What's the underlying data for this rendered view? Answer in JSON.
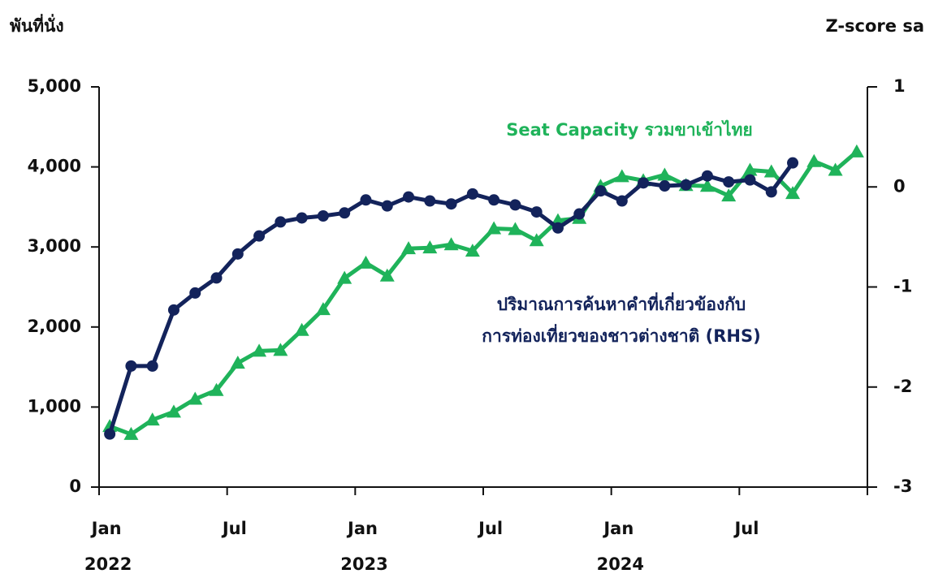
{
  "chart_data": {
    "type": "line",
    "y_axis_label": "พันที่นั่ง",
    "y2_axis_label": "Z-score sa",
    "annotations": [
      "Seat Capacity รวมขาเข้าไทย",
      "ปริมาณการค้นหาคำที่เกี่ยวข้องกับ",
      "การท่องเที่ยวของชาวต่างชาติ (RHS)"
    ],
    "categories": [
      "Jan",
      null,
      null,
      null,
      null,
      null,
      "Jul",
      null,
      null,
      null,
      null,
      null,
      "Jan",
      null,
      null,
      null,
      null,
      null,
      "Jul",
      null,
      null,
      null,
      null,
      null,
      "Jan",
      null,
      null,
      null,
      null,
      null,
      "Jul",
      null,
      null,
      null,
      null,
      null
    ],
    "years": [
      "2022",
      "2023",
      "2024"
    ],
    "series": [
      {
        "name": "Seat Capacity รวมขาเข้าไทย",
        "color": "#1fb35a",
        "marker": "triangle",
        "values": [
          760,
          660,
          840,
          940,
          1100,
          1210,
          1550,
          1700,
          1710,
          1960,
          2220,
          2610,
          2800,
          2640,
          2980,
          2990,
          3030,
          2950,
          3230,
          3220,
          3080,
          3330,
          3360,
          3760,
          3880,
          3830,
          3900,
          3770,
          3760,
          3640,
          3960,
          3940,
          3670,
          4070,
          3960,
          4190
        ]
      },
      {
        "name": "ปริมาณการค้นหาคำที่เกี่ยวข้องกับการท่องเที่ยวของชาวต่างชาติ (RHS)",
        "color": "#13235b",
        "marker": "circle",
        "axis": "y2",
        "values": [
          -2.47,
          -1.79,
          -1.79,
          -1.23,
          -1.06,
          -0.91,
          -0.67,
          -0.49,
          -0.35,
          -0.31,
          -0.29,
          -0.26,
          -0.13,
          -0.19,
          -0.1,
          -0.14,
          -0.17,
          -0.07,
          -0.13,
          -0.18,
          -0.25,
          -0.41,
          -0.27,
          -0.04,
          -0.14,
          0.04,
          0.01,
          0.02,
          0.11,
          0.05,
          0.07,
          -0.05,
          0.24,
          null,
          null,
          null
        ]
      }
    ],
    "ylim": [
      0,
      5000
    ],
    "yticks": [
      0,
      {
        "value": 1000,
        "label": "1,000"
      },
      {
        "value": 2000,
        "label": "2,000"
      },
      {
        "value": 3000,
        "label": "3,000"
      },
      {
        "value": 4000,
        "label": "4,000"
      },
      {
        "value": 5000,
        "label": "5,000"
      }
    ],
    "y2lim": [
      -3,
      1
    ],
    "y2ticks": [
      -3,
      -2,
      -1,
      0,
      1
    ]
  }
}
